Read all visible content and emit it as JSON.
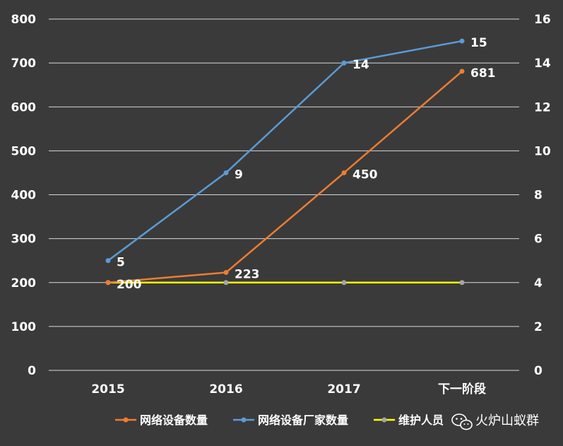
{
  "chart_data": {
    "type": "line",
    "categories": [
      "2015",
      "2016",
      "2017",
      "下一阶段"
    ],
    "y_left": {
      "min": 0,
      "max": 800,
      "step": 100,
      "ticks": [
        "0",
        "100",
        "200",
        "300",
        "400",
        "500",
        "600",
        "700",
        "800"
      ]
    },
    "y_right": {
      "min": 0,
      "max": 16,
      "step": 2,
      "ticks": [
        "0",
        "2",
        "4",
        "6",
        "8",
        "10",
        "12",
        "14",
        "16"
      ]
    },
    "grid": true,
    "legend_position": "bottom",
    "series": [
      {
        "name": "网络设备数量",
        "axis": "left",
        "color": "#ed7d31",
        "marker_color": "#ed7d31",
        "values": [
          200,
          223,
          450,
          681
        ],
        "labels": [
          "200",
          "223",
          "450",
          "681"
        ]
      },
      {
        "name": "网络设备厂家数量",
        "axis": "right",
        "color": "#5b9bd5",
        "marker_color": "#5b9bd5",
        "values": [
          5,
          9,
          14,
          15
        ],
        "labels": [
          "5",
          "9",
          "14",
          "15"
        ]
      },
      {
        "name": "维护人员",
        "axis": "left",
        "color": "#ffff00",
        "marker_color": "#a5a5a5",
        "values": [
          200,
          200,
          200,
          200
        ],
        "labels": []
      }
    ]
  },
  "watermark": {
    "text": "火炉山蚁群",
    "icon": "wechat-icon"
  }
}
